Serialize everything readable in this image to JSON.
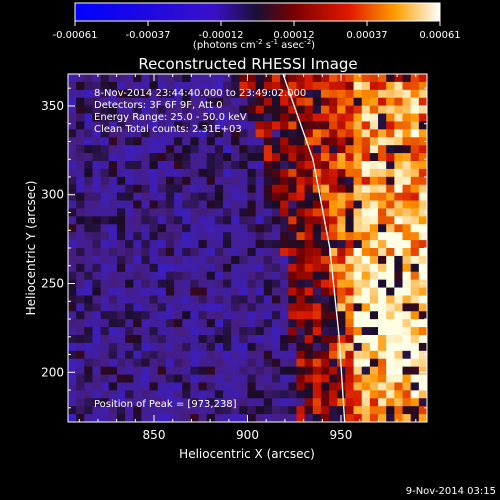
{
  "colorbar": {
    "ticks": [
      "-0.00061",
      "-0.00037",
      "-0.00012",
      "0.00012",
      "0.00037",
      "0.00061"
    ],
    "units_prefix": "(photons cm",
    "units_exp1": "-2",
    "units_mid": " s",
    "units_exp2": "-1",
    "units_mid2": " asec",
    "units_exp3": "-2",
    "units_suffix": ")"
  },
  "chart_data": {
    "type": "heatmap",
    "title": "Reconstructed RHESSI Image",
    "xlabel": "Heliocentric X (arcsec)",
    "ylabel": "Heliocentric Y (arcsec)",
    "xlim": [
      804,
      996
    ],
    "ylim": [
      172,
      368
    ],
    "xticks": [
      850,
      900,
      950
    ],
    "yticks": [
      200,
      250,
      300,
      350
    ],
    "limb_curve": [
      [
        919,
        368
      ],
      [
        935,
        320
      ],
      [
        944,
        270
      ],
      [
        949,
        220
      ],
      [
        952,
        172
      ]
    ],
    "peak": [
      973,
      238
    ],
    "annotations": {
      "time_range": "8-Nov-2014 23:44:40.000 to 23:49:02.000",
      "detectors": "Detectors: 3F 6F 9F, Att 0",
      "energy": "Energy Range: 25.0 - 50.0 keV",
      "method": "Clean    Total counts: 2.31E+03",
      "peak_text": "Position of Peak = [973,238]"
    },
    "color_range": [
      -0.00061,
      0.00061
    ]
  },
  "footer": {
    "date": "9-Nov-2014 03:15"
  },
  "colors": {
    "background": "#000000",
    "text": "#ffffff"
  }
}
